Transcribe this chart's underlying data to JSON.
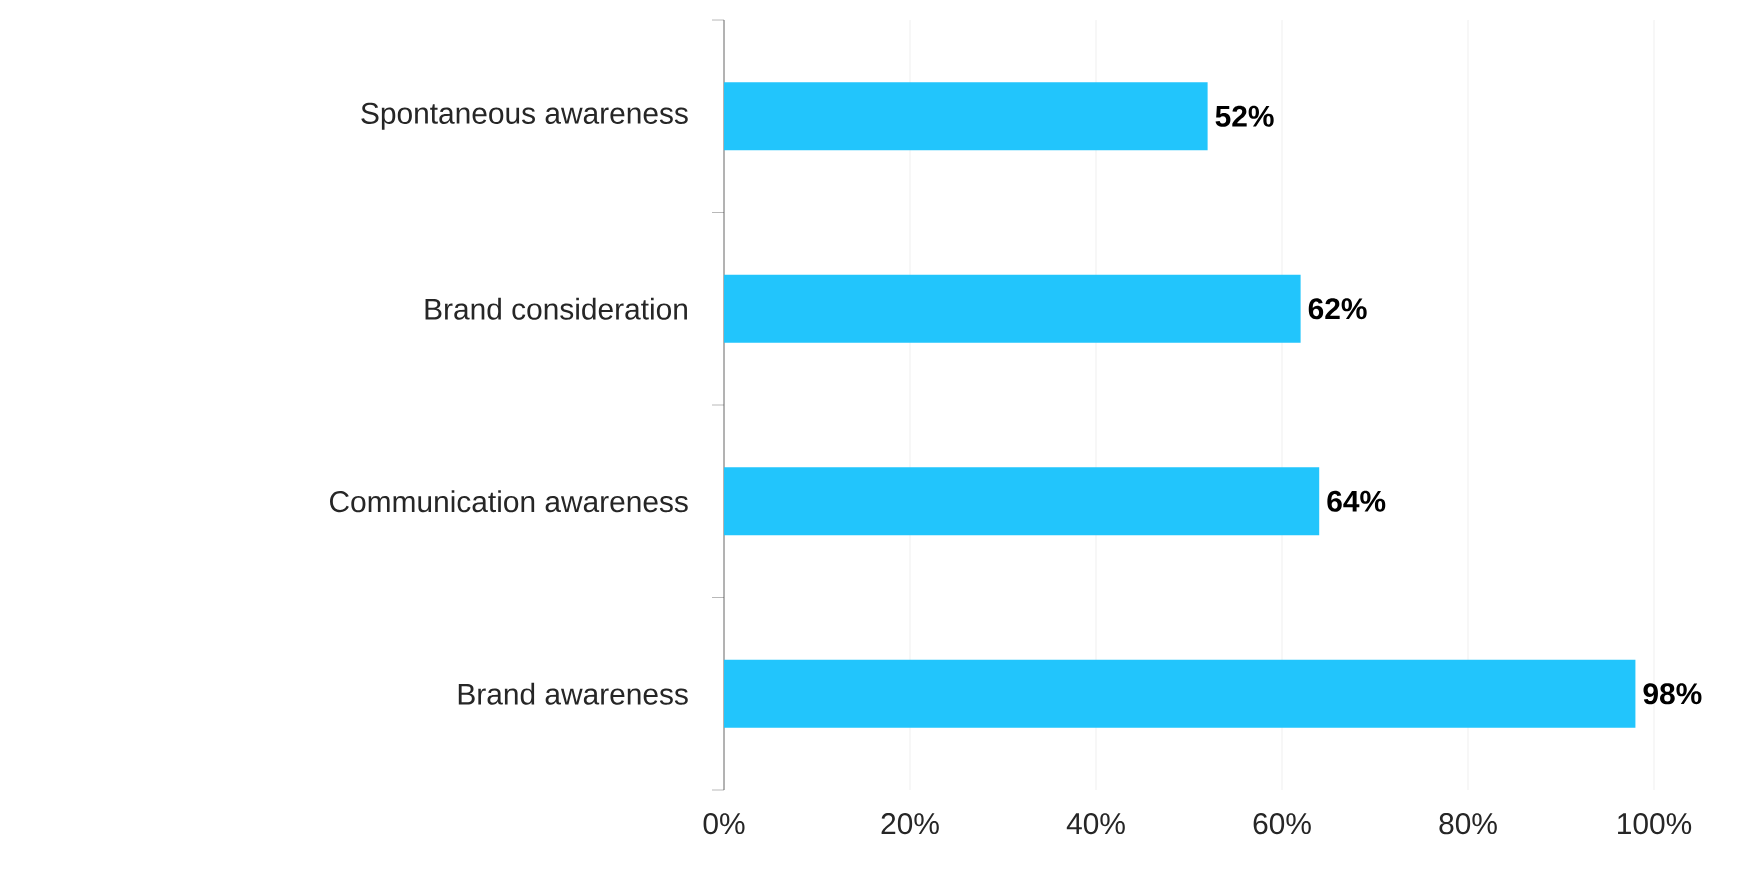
{
  "chart_data": {
    "type": "bar",
    "orientation": "horizontal",
    "categories": [
      "Spontaneous awareness",
      "Brand consideration",
      "Communication awareness",
      "Brand awareness"
    ],
    "values": [
      52,
      62,
      64,
      98
    ],
    "value_labels": [
      "52%",
      "62%",
      "64%",
      "98%"
    ],
    "color": "#22c5fc",
    "xlim": [
      0,
      100
    ],
    "xticks": [
      {
        "value": 0,
        "label": "0%"
      },
      {
        "value": 20,
        "label": "20%"
      },
      {
        "value": 40,
        "label": "40%"
      },
      {
        "value": 60,
        "label": "60%"
      },
      {
        "value": 80,
        "label": "80%"
      },
      {
        "value": 100,
        "label": "100%"
      }
    ],
    "grid": "x"
  }
}
